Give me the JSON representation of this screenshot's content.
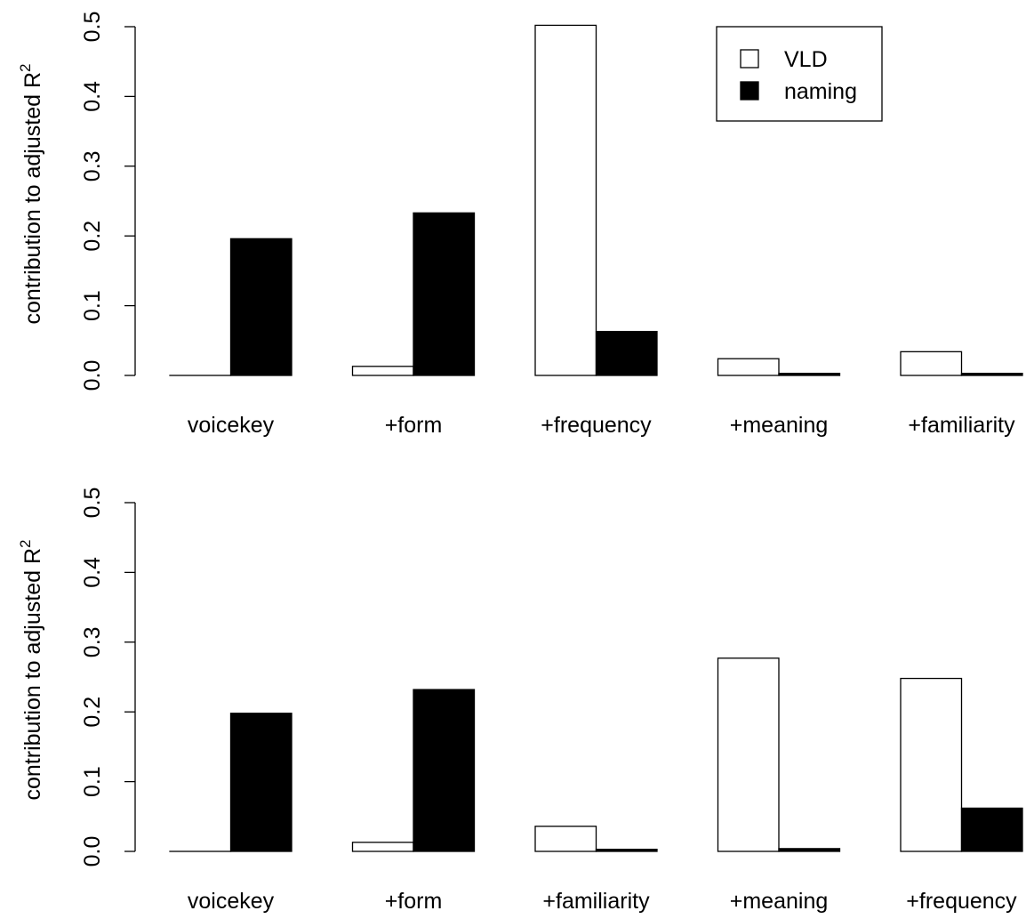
{
  "chart_data": [
    {
      "type": "bar",
      "ylabel_main": "contribution to adjusted R",
      "ylabel_sup": "2",
      "ylim": [
        0,
        0.5
      ],
      "yticks": [
        "0.0",
        "0.1",
        "0.2",
        "0.3",
        "0.4",
        "0.5"
      ],
      "ytick_values": [
        0,
        0.1,
        0.2,
        0.3,
        0.4,
        0.5
      ],
      "categories": [
        "voicekey",
        "+form",
        "+frequency",
        "+meaning",
        "+familiarity"
      ],
      "series": [
        {
          "name": "VLD",
          "fill": "#ffffff",
          "values": [
            0.0,
            0.013,
            0.502,
            0.024,
            0.034
          ]
        },
        {
          "name": "naming",
          "fill": "#000000",
          "values": [
            0.196,
            0.233,
            0.063,
            0.003,
            0.003
          ]
        }
      ],
      "legend": {
        "position": "top-right",
        "entries": [
          "VLD",
          "naming"
        ]
      },
      "grid": false
    },
    {
      "type": "bar",
      "ylabel_main": "contribution to adjusted R",
      "ylabel_sup": "2",
      "ylim": [
        0,
        0.5
      ],
      "yticks": [
        "0.0",
        "0.1",
        "0.2",
        "0.3",
        "0.4",
        "0.5"
      ],
      "ytick_values": [
        0,
        0.1,
        0.2,
        0.3,
        0.4,
        0.5
      ],
      "categories": [
        "voicekey",
        "+form",
        "+familiarity",
        "+meaning",
        "+frequency"
      ],
      "series": [
        {
          "name": "VLD",
          "fill": "#ffffff",
          "values": [
            0.0,
            0.013,
            0.036,
            0.277,
            0.248
          ]
        },
        {
          "name": "naming",
          "fill": "#000000",
          "values": [
            0.198,
            0.232,
            0.003,
            0.004,
            0.062
          ]
        }
      ],
      "grid": false
    }
  ]
}
